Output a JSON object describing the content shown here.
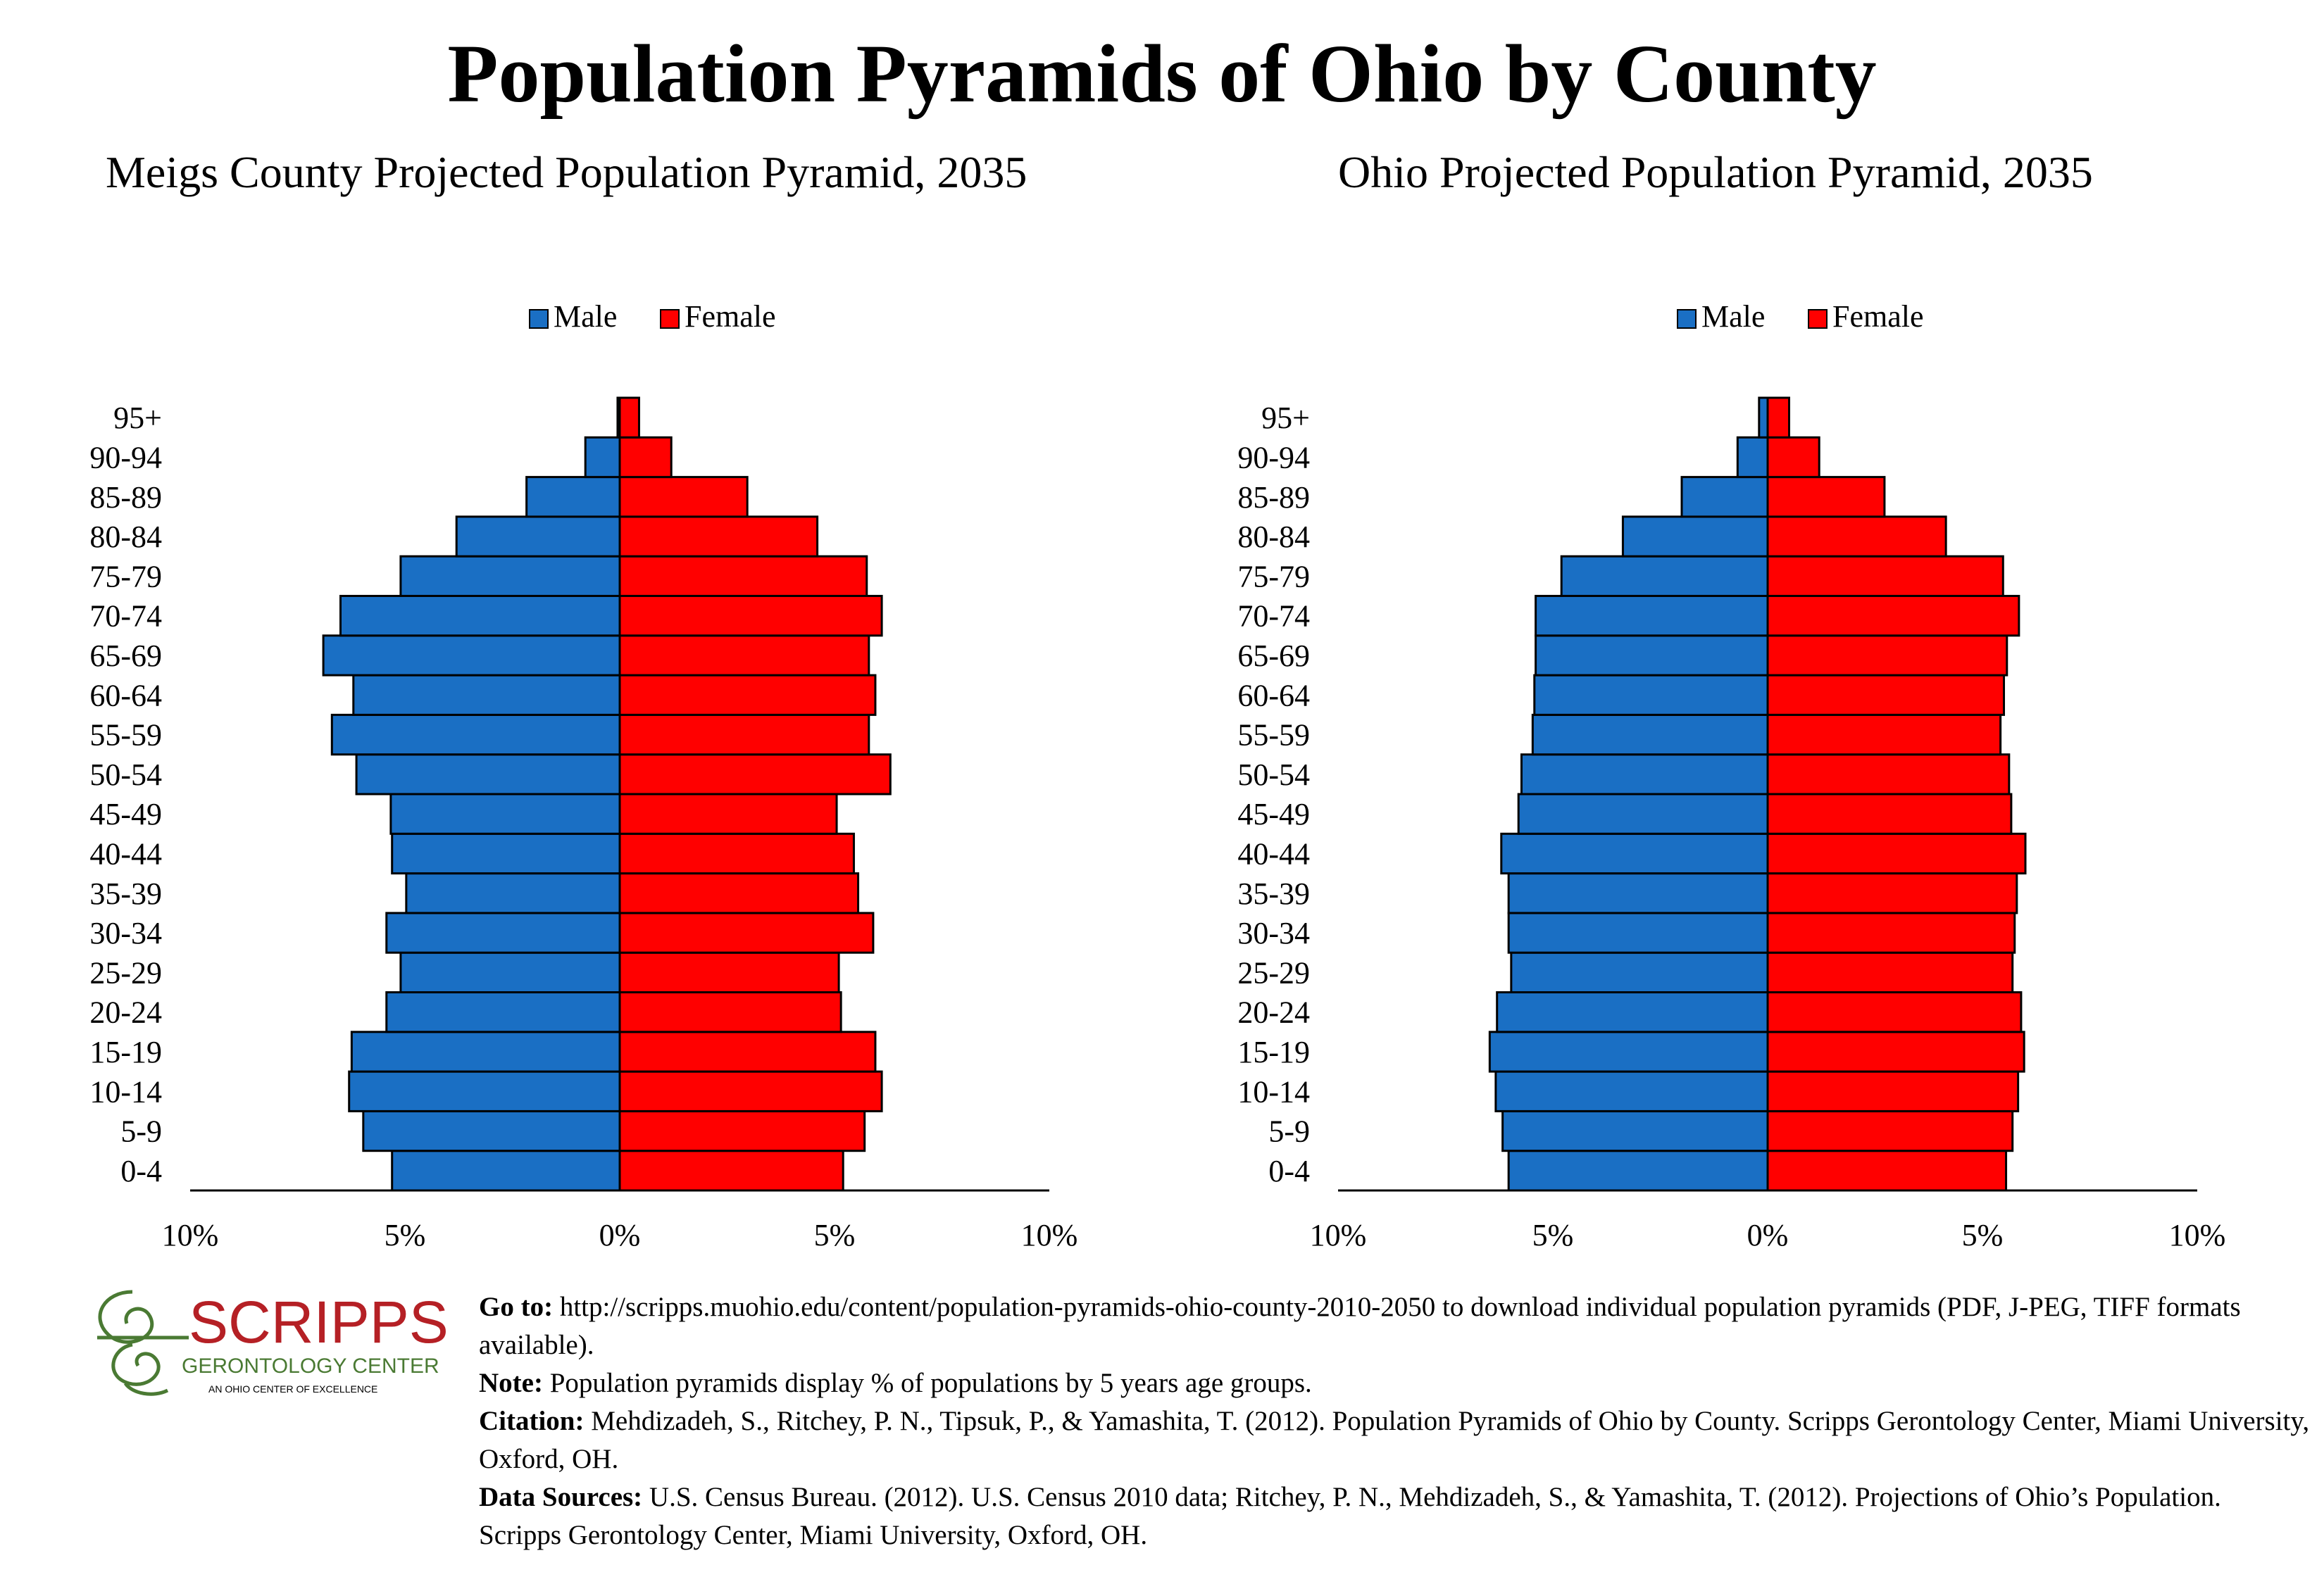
{
  "page": {
    "title": "Population Pyramids of Ohio by County"
  },
  "charts": [
    {
      "title": "Meigs County Projected Population Pyramid, 2035"
    },
    {
      "title": "Ohio Projected Population Pyramid, 2035"
    }
  ],
  "chart_data": [
    {
      "type": "bar",
      "orientation": "horizontal-pyramid",
      "title": "Meigs County Projected Population Pyramid, 2035",
      "categories": [
        "0-4",
        "5-9",
        "10-14",
        "15-19",
        "20-24",
        "25-29",
        "30-34",
        "35-39",
        "40-44",
        "45-49",
        "50-54",
        "55-59",
        "60-64",
        "65-69",
        "70-74",
        "75-79",
        "80-84",
        "85-89",
        "90-94",
        "95+"
      ],
      "series": [
        {
          "name": "Male",
          "color": "#1a6fc4",
          "values": [
            5.3,
            5.97,
            6.3,
            6.24,
            5.43,
            5.1,
            5.43,
            4.97,
            5.3,
            5.33,
            6.13,
            6.7,
            6.2,
            6.9,
            6.5,
            5.1,
            3.8,
            2.17,
            0.8,
            0.05
          ]
        },
        {
          "name": "Female",
          "color": "#ff0000",
          "values": [
            5.2,
            5.7,
            6.1,
            5.95,
            5.15,
            5.1,
            5.9,
            5.55,
            5.45,
            5.05,
            6.3,
            5.8,
            5.95,
            5.8,
            6.1,
            5.75,
            4.6,
            2.97,
            1.2,
            0.45
          ]
        }
      ],
      "legend_position": "top-center",
      "xlim": [
        -10,
        10
      ],
      "x_ticks": [
        "10%",
        "5%",
        "0%",
        "5%",
        "10%"
      ],
      "grid": false
    },
    {
      "type": "bar",
      "orientation": "horizontal-pyramid",
      "title": "Ohio Projected Population Pyramid, 2035",
      "categories": [
        "0-4",
        "5-9",
        "10-14",
        "15-19",
        "20-24",
        "25-29",
        "30-34",
        "35-39",
        "40-44",
        "45-49",
        "50-54",
        "55-59",
        "60-64",
        "65-69",
        "70-74",
        "75-79",
        "80-84",
        "85-89",
        "90-94",
        "95+"
      ],
      "series": [
        {
          "name": "Male",
          "color": "#1a6fc4",
          "values": [
            6.03,
            6.17,
            6.33,
            6.47,
            6.3,
            5.97,
            6.03,
            6.03,
            6.2,
            5.8,
            5.73,
            5.47,
            5.43,
            5.4,
            5.4,
            4.8,
            3.37,
            2.0,
            0.7,
            0.2
          ]
        },
        {
          "name": "Female",
          "color": "#ff0000",
          "values": [
            5.55,
            5.7,
            5.83,
            5.97,
            5.9,
            5.7,
            5.75,
            5.8,
            6.0,
            5.67,
            5.62,
            5.42,
            5.5,
            5.57,
            5.85,
            5.48,
            4.15,
            2.72,
            1.2,
            0.5
          ]
        }
      ],
      "legend_position": "top-center",
      "xlim": [
        -10,
        10
      ],
      "x_ticks": [
        "10%",
        "5%",
        "0%",
        "5%",
        "10%"
      ],
      "grid": false
    }
  ],
  "logo": {
    "name": "SCRIPPS",
    "line2": "GERONTOLOGY CENTER",
    "line3": "AN OHIO CENTER OF EXCELLENCE",
    "color_red": "#b52025",
    "color_green": "#4a7a33"
  },
  "footer": {
    "goto_label": "Go to:",
    "goto_text": " http://scripps.muohio.edu/content/population-pyramids-ohio-county-2010-2050 to download individual population pyramids (PDF, J-PEG, TIFF formats available).",
    "note_label": "Note:",
    "note_text": " Population pyramids display % of populations by 5 years age groups.",
    "citation_label": "Citation:",
    "citation_text": " Mehdizadeh, S., Ritchey, P. N., Tipsuk, P., & Yamashita, T. (2012). Population Pyramids of Ohio by County. Scripps Gerontology Center, Miami University, Oxford, OH.",
    "sources_label": "Data Sources:",
    "sources_text": " U.S. Census Bureau. (2012). U.S. Census 2010 data; Ritchey, P. N., Mehdizadeh, S., & Yamashita, T. (2012). Projections of Ohio’s Population. Scripps Gerontology Center, Miami University, Oxford, OH."
  }
}
